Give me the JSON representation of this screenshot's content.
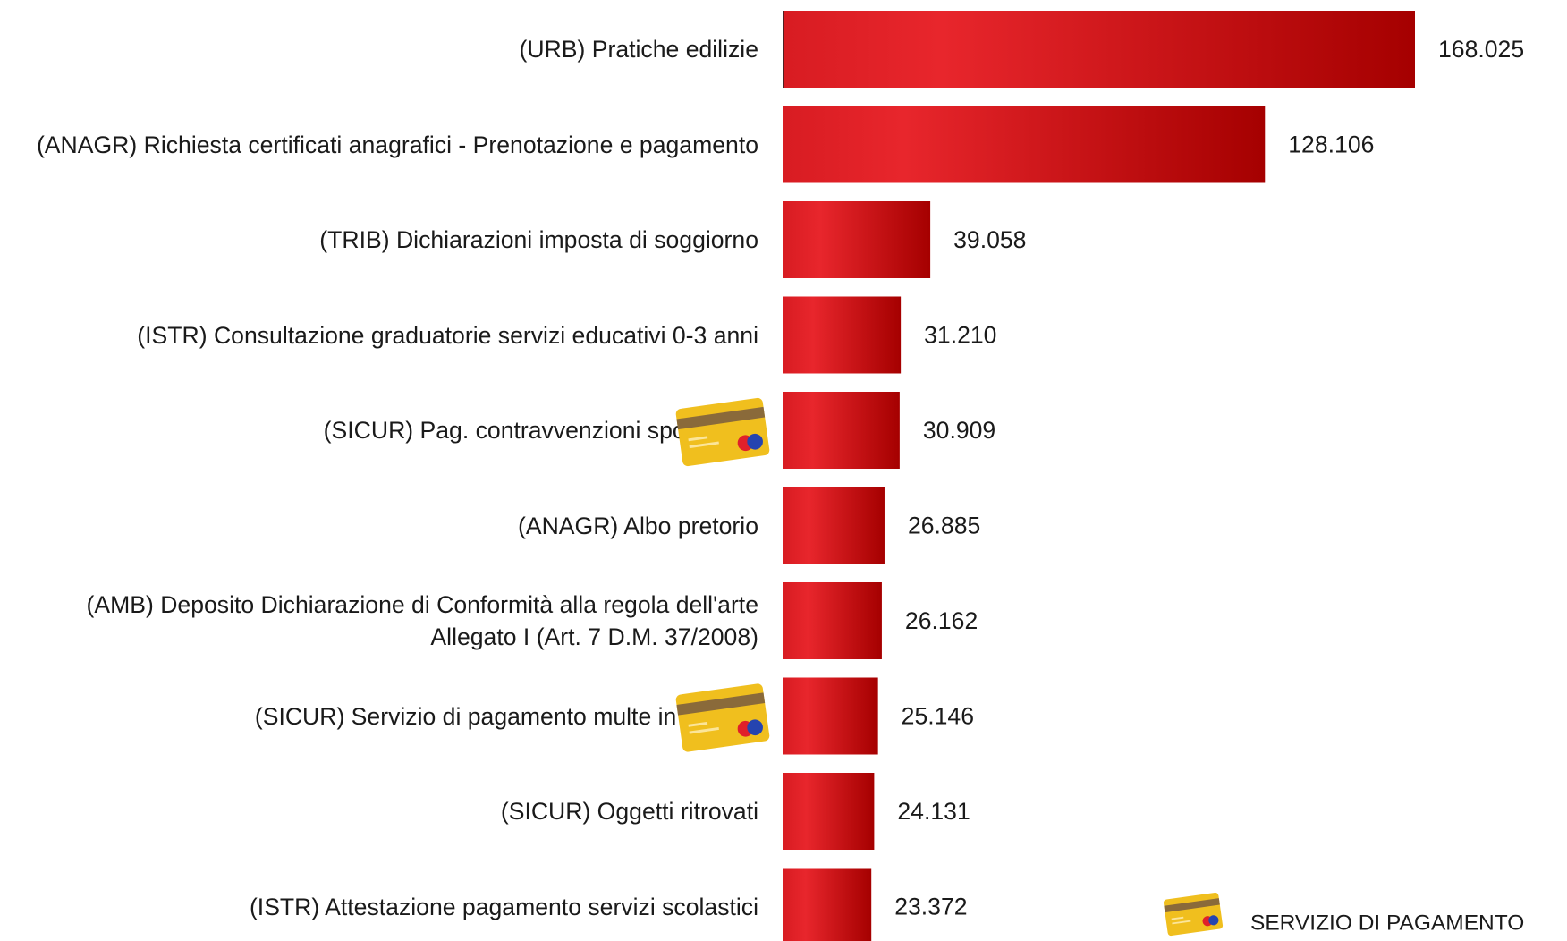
{
  "chart_data": {
    "type": "bar",
    "orientation": "horizontal",
    "categories": [
      "(URB) Pratiche edilizie",
      "(ANAGR) Richiesta certificati anagrafici - Prenotazione e pagamento",
      "(TRIB) Dichiarazioni imposta di soggiorno",
      "(ISTR) Consultazione graduatorie servizi educativi 0-3 anni",
      "(SICUR) Pag. contravvenzioni spontanee",
      "(ANAGR) Albo pretorio",
      "(AMB) Deposito Dichiarazione di Conformità alla regola dell'arte Allegato I (Art. 7 D.M. 37/2008)",
      "(SICUR) Servizio di pagamento multe in inglese",
      "(SICUR) Oggetti ritrovati",
      "(ISTR) Attestazione pagamento servizi scolastici"
    ],
    "values": [
      168025,
      128106,
      39058,
      31210,
      30909,
      26885,
      26162,
      25146,
      24131,
      23372
    ],
    "value_labels": [
      "168.025",
      "128.106",
      "39.058",
      "31.210",
      "30.909",
      "26.885",
      "26.162",
      "25.146",
      "24.131",
      "23.372"
    ],
    "payment": [
      false,
      false,
      false,
      false,
      true,
      false,
      false,
      true,
      false,
      false
    ],
    "legend": "SERVIZIO DI PAGAMENTO",
    "color": "#c8101a"
  }
}
